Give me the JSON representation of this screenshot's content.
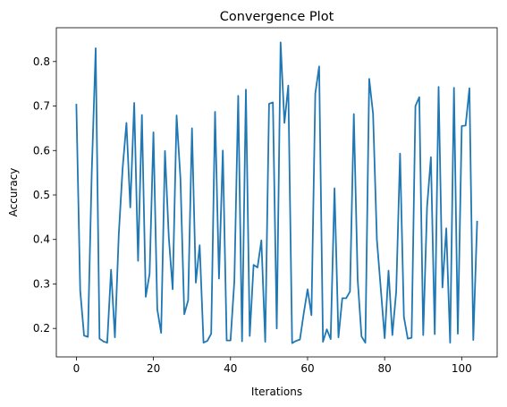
{
  "chart_data": {
    "type": "line",
    "title": "Convergence Plot",
    "xlabel": "Iterations",
    "ylabel": "Accuracy",
    "xlim": [
      -5.2,
      109.2
    ],
    "ylim": [
      0.136,
      0.876
    ],
    "xticks": [
      0,
      20,
      40,
      60,
      80,
      100
    ],
    "yticks": [
      0.2,
      0.3,
      0.4,
      0.5,
      0.6,
      0.7,
      0.8
    ],
    "xtick_labels": [
      "0",
      "20",
      "40",
      "60",
      "80",
      "100"
    ],
    "ytick_labels": [
      "0.2",
      "0.3",
      "0.4",
      "0.5",
      "0.6",
      "0.7",
      "0.8"
    ],
    "grid": false,
    "series": [
      {
        "color": "#1f77b4",
        "x": [
          0,
          1,
          2,
          3,
          4,
          5,
          6,
          7,
          8,
          9,
          10,
          11,
          12,
          13,
          14,
          15,
          16,
          17,
          18,
          19,
          20,
          21,
          22,
          23,
          24,
          25,
          26,
          27,
          28,
          29,
          30,
          31,
          32,
          33,
          34,
          35,
          36,
          37,
          38,
          39,
          40,
          41,
          42,
          43,
          44,
          45,
          46,
          47,
          48,
          49,
          50,
          51,
          52,
          53,
          54,
          55,
          56,
          57,
          58,
          59,
          60,
          61,
          62,
          63,
          64,
          65,
          66,
          67,
          68,
          69,
          70,
          71,
          72,
          73,
          74,
          75,
          76,
          77,
          78,
          79,
          80,
          81,
          82,
          83,
          84,
          85,
          86,
          87,
          88,
          89,
          90,
          91,
          92,
          93,
          94,
          95,
          96,
          97,
          98,
          99,
          100,
          101,
          102,
          103,
          104
        ],
        "values": [
          0.703,
          0.285,
          0.184,
          0.181,
          0.551,
          0.83,
          0.177,
          0.171,
          0.168,
          0.332,
          0.18,
          0.41,
          0.559,
          0.662,
          0.472,
          0.707,
          0.352,
          0.68,
          0.271,
          0.323,
          0.641,
          0.243,
          0.19,
          0.599,
          0.404,
          0.288,
          0.679,
          0.537,
          0.232,
          0.263,
          0.65,
          0.303,
          0.387,
          0.168,
          0.172,
          0.188,
          0.687,
          0.312,
          0.6,
          0.173,
          0.173,
          0.307,
          0.723,
          0.171,
          0.737,
          0.183,
          0.343,
          0.337,
          0.398,
          0.17,
          0.705,
          0.708,
          0.2,
          0.843,
          0.662,
          0.746,
          0.167,
          0.172,
          0.175,
          0.234,
          0.288,
          0.23,
          0.728,
          0.789,
          0.17,
          0.198,
          0.176,
          0.515,
          0.18,
          0.268,
          0.268,
          0.283,
          0.682,
          0.31,
          0.182,
          0.168,
          0.761,
          0.683,
          0.399,
          0.288,
          0.178,
          0.33,
          0.185,
          0.283,
          0.593,
          0.226,
          0.177,
          0.179,
          0.7,
          0.72,
          0.185,
          0.473,
          0.585,
          0.187,
          0.743,
          0.292,
          0.425,
          0.168,
          0.741,
          0.188,
          0.655,
          0.656,
          0.74,
          0.174,
          0.44
        ]
      }
    ]
  }
}
